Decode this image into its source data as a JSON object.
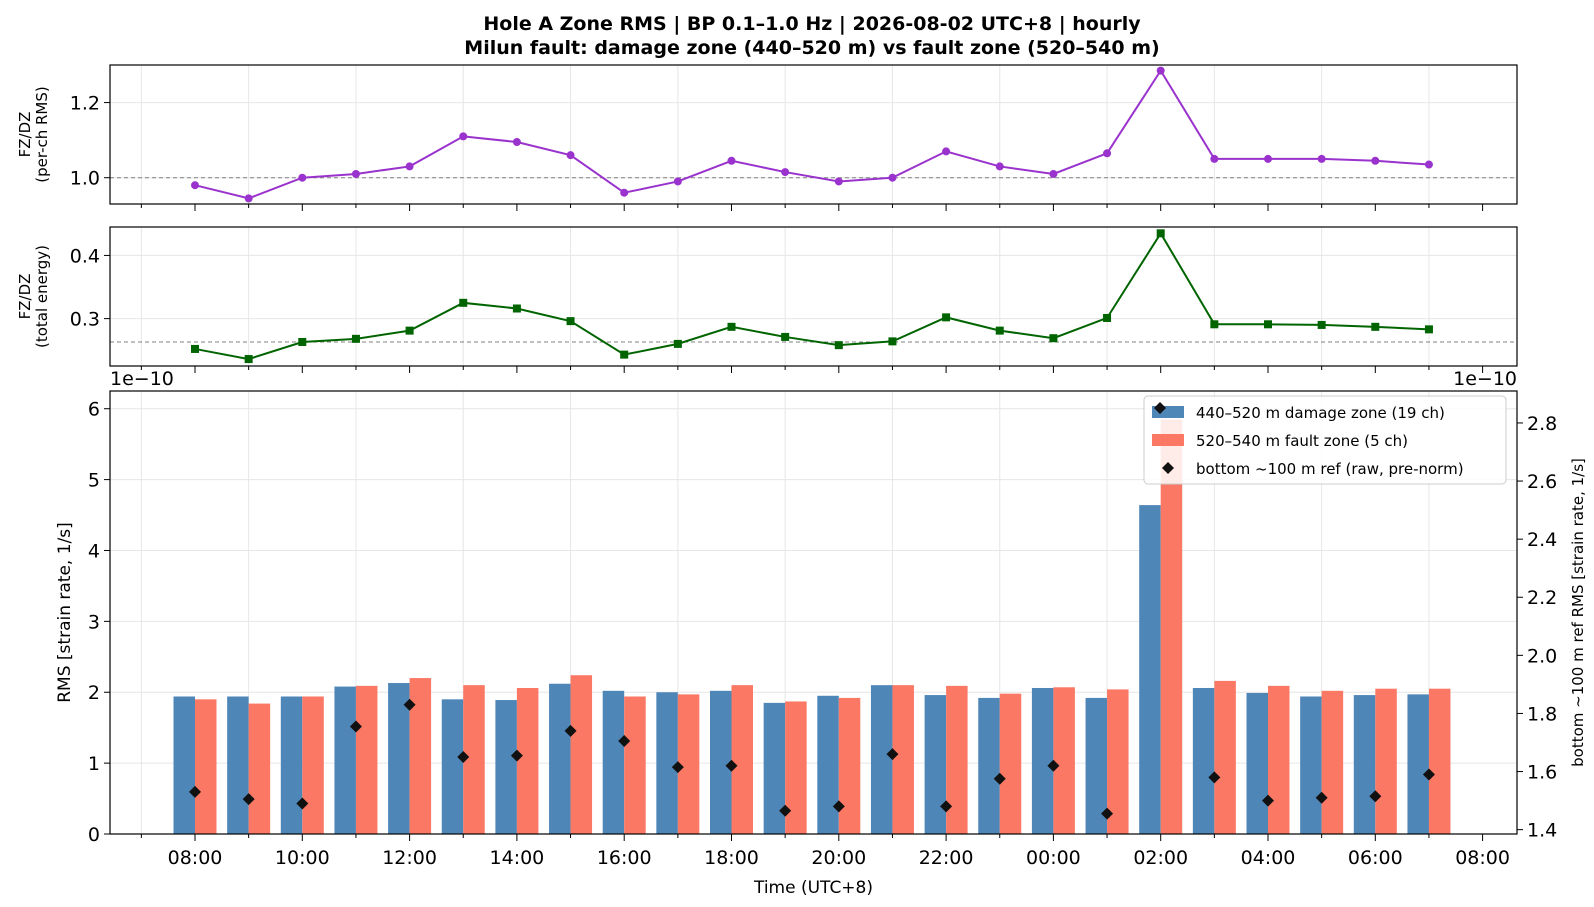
{
  "chart_data": [
    {
      "id": "ratio_perch",
      "type": "line",
      "title": "Hole A Zone RMS  |  BP 0.1–1.0 Hz  |  2026-08-02 UTC+8  |  hourly",
      "subtitle": "Milun fault: damage zone (440–520 m) vs fault zone (520–540 m)",
      "ylabel": [
        "FZ/DZ",
        "(per-ch RMS)"
      ],
      "ylim": [
        0.93,
        1.3
      ],
      "yticks": [
        1.0,
        1.2
      ],
      "ytick_labels": [
        "1.0",
        "1.2"
      ],
      "reference_line": 1.0,
      "color": "#9a32cd",
      "marker": "circle",
      "x": [
        "08:00",
        "09:00",
        "10:00",
        "11:00",
        "12:00",
        "13:00",
        "14:00",
        "15:00",
        "16:00",
        "17:00",
        "18:00",
        "19:00",
        "20:00",
        "21:00",
        "22:00",
        "23:00",
        "00:00",
        "01:00",
        "02:00",
        "03:00",
        "04:00",
        "05:00",
        "06:00",
        "07:00"
      ],
      "values": [
        0.98,
        0.945,
        1.0,
        1.01,
        1.03,
        1.11,
        1.095,
        1.06,
        0.96,
        0.99,
        1.045,
        1.015,
        0.99,
        1.0,
        1.07,
        1.03,
        1.01,
        1.065,
        1.285,
        1.05,
        1.05,
        1.05,
        1.045,
        1.035
      ]
    },
    {
      "id": "ratio_energy",
      "type": "line",
      "ylabel": [
        "FZ/DZ",
        "(total energy)"
      ],
      "ylim": [
        0.225,
        0.445
      ],
      "yticks": [
        0.3,
        0.4
      ],
      "ytick_labels": [
        "0.3",
        "0.4"
      ],
      "reference_line": 0.263,
      "color": "#006400",
      "marker": "square",
      "x": [
        "08:00",
        "09:00",
        "10:00",
        "11:00",
        "12:00",
        "13:00",
        "14:00",
        "15:00",
        "16:00",
        "17:00",
        "18:00",
        "19:00",
        "20:00",
        "21:00",
        "22:00",
        "23:00",
        "00:00",
        "01:00",
        "02:00",
        "03:00",
        "04:00",
        "05:00",
        "06:00",
        "07:00"
      ],
      "values": [
        0.252,
        0.236,
        0.263,
        0.268,
        0.281,
        0.325,
        0.316,
        0.296,
        0.243,
        0.26,
        0.287,
        0.271,
        0.258,
        0.264,
        0.302,
        0.281,
        0.269,
        0.301,
        0.435,
        0.291,
        0.291,
        0.29,
        0.287,
        0.283
      ]
    },
    {
      "id": "zone_rms",
      "type": "bar",
      "ylabel": "RMS  [strain rate, 1/s]",
      "ylabel_right": "bottom ~100 m ref RMS  [strain rate, 1/s]",
      "xlabel": "Time (UTC+8)",
      "offset_left": "1e−10",
      "offset_right": "1e−10",
      "ylim": [
        0,
        6.25
      ],
      "yticks": [
        0,
        1,
        2,
        3,
        4,
        5,
        6
      ],
      "ytick_labels": [
        "0",
        "1",
        "2",
        "3",
        "4",
        "5",
        "6"
      ],
      "ylim_right": [
        1.385,
        2.91
      ],
      "yticks_right": [
        1.4,
        1.6,
        1.8,
        2.0,
        2.2,
        2.4,
        2.6,
        2.8
      ],
      "ytick_labels_right": [
        "1.4",
        "1.6",
        "1.8",
        "2.0",
        "2.2",
        "2.4",
        "2.6",
        "2.8"
      ],
      "x_tick_labels": [
        "08:00",
        "10:00",
        "12:00",
        "14:00",
        "16:00",
        "18:00",
        "20:00",
        "22:00",
        "00:00",
        "02:00",
        "04:00",
        "06:00",
        "08:00"
      ],
      "legend_position": "top-right",
      "categories": [
        "08:00",
        "09:00",
        "10:00",
        "11:00",
        "12:00",
        "13:00",
        "14:00",
        "15:00",
        "16:00",
        "17:00",
        "18:00",
        "19:00",
        "20:00",
        "21:00",
        "22:00",
        "23:00",
        "00:00",
        "01:00",
        "02:00",
        "03:00",
        "04:00",
        "05:00",
        "06:00",
        "07:00"
      ],
      "series": [
        {
          "name": "440–520 m  damage zone (19 ch)",
          "color": "#4f86b8",
          "axis": "left",
          "values": [
            1.94,
            1.94,
            1.94,
            2.08,
            2.13,
            1.9,
            1.89,
            2.12,
            2.02,
            2.0,
            2.02,
            1.85,
            1.95,
            2.1,
            1.96,
            1.92,
            2.06,
            1.92,
            4.64,
            2.06,
            1.99,
            1.94,
            1.96,
            1.97
          ]
        },
        {
          "name": "520–540 m  fault zone (5 ch)",
          "color": "#fa7864",
          "axis": "left",
          "values": [
            1.9,
            1.84,
            1.94,
            2.09,
            2.2,
            2.1,
            2.06,
            2.24,
            1.94,
            1.97,
            2.1,
            1.87,
            1.92,
            2.1,
            2.09,
            1.98,
            2.07,
            2.04,
            5.85,
            2.16,
            2.09,
            2.02,
            2.05,
            2.05
          ]
        },
        {
          "name": "bottom ~100 m ref (raw, pre-norm)",
          "color": "#111111",
          "axis": "right",
          "marker": "diamond",
          "values": [
            1.53,
            1.505,
            1.49,
            1.755,
            1.83,
            1.65,
            1.655,
            1.74,
            1.705,
            1.615,
            1.62,
            1.465,
            1.48,
            1.66,
            1.48,
            1.575,
            1.62,
            1.455,
            null,
            1.58,
            1.5,
            1.51,
            1.515,
            1.59
          ]
        }
      ]
    }
  ]
}
